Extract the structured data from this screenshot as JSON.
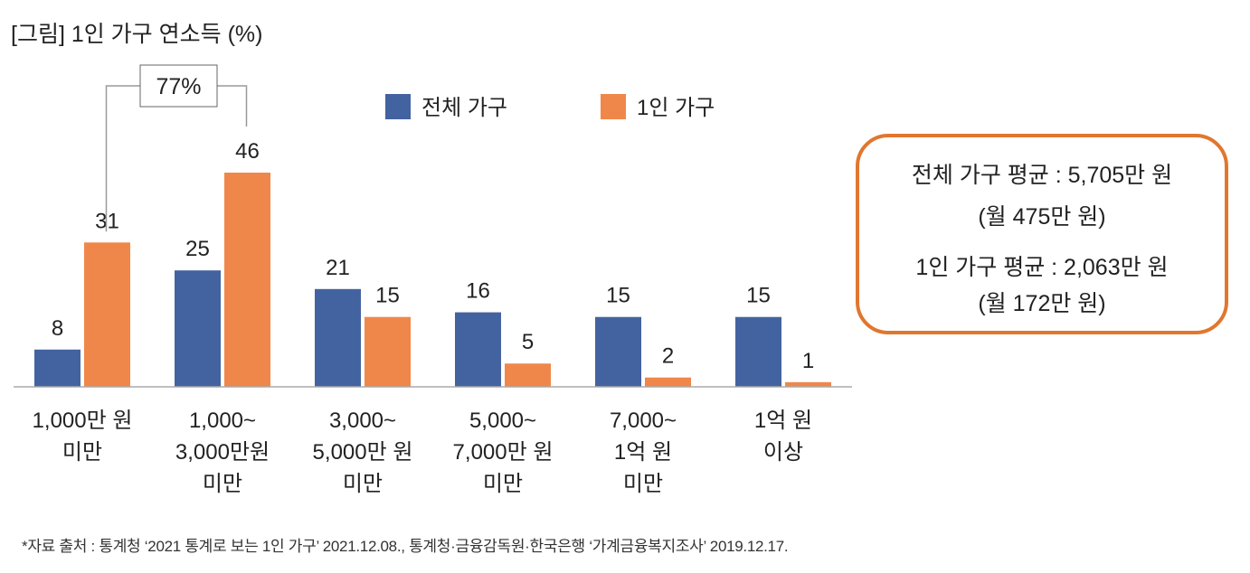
{
  "title": "[그림] 1인 가구 연소득 (%)",
  "source": "*자료 출처 : 통계청 ‘2021 통계로 보는 1인 가구’ 2021.12.08., 통계청·금융감독원·한국은행 ‘가계금융복지조사’ 2019.12.17.",
  "average_box": {
    "line1": "전체 가구 평균 : 5,705만 원",
    "line2": "(월 475만 원)",
    "line3": "1인 가구 평균 : 2,063만 원",
    "line4": "(월 172만 원)",
    "border_color": "#e0772f"
  },
  "chart_data": {
    "type": "bar",
    "title": "[그림] 1인 가구 연소득 (%)",
    "xlabel": "",
    "ylabel": "",
    "ylim": [
      0,
      46
    ],
    "grid": false,
    "legend_position": "top-center",
    "categories": [
      [
        "1,000만 원",
        "미만"
      ],
      [
        "1,000~",
        "3,000만원",
        "미만"
      ],
      [
        "3,000~",
        "5,000만 원",
        "미만"
      ],
      [
        "5,000~",
        "7,000만 원",
        "미만"
      ],
      [
        "7,000~",
        "1억 원",
        "미만"
      ],
      [
        "1억 원",
        "이상"
      ]
    ],
    "series": [
      {
        "name": "전체 가구",
        "color": "#4363a0",
        "values": [
          8,
          25,
          21,
          16,
          15,
          15
        ]
      },
      {
        "name": "1인 가구",
        "color": "#f0874a",
        "values": [
          31,
          46,
          15,
          5,
          2,
          1
        ]
      }
    ],
    "annotation": {
      "text": "77%",
      "note_between_categories": [
        0,
        1
      ],
      "series": "1인 가구"
    }
  }
}
